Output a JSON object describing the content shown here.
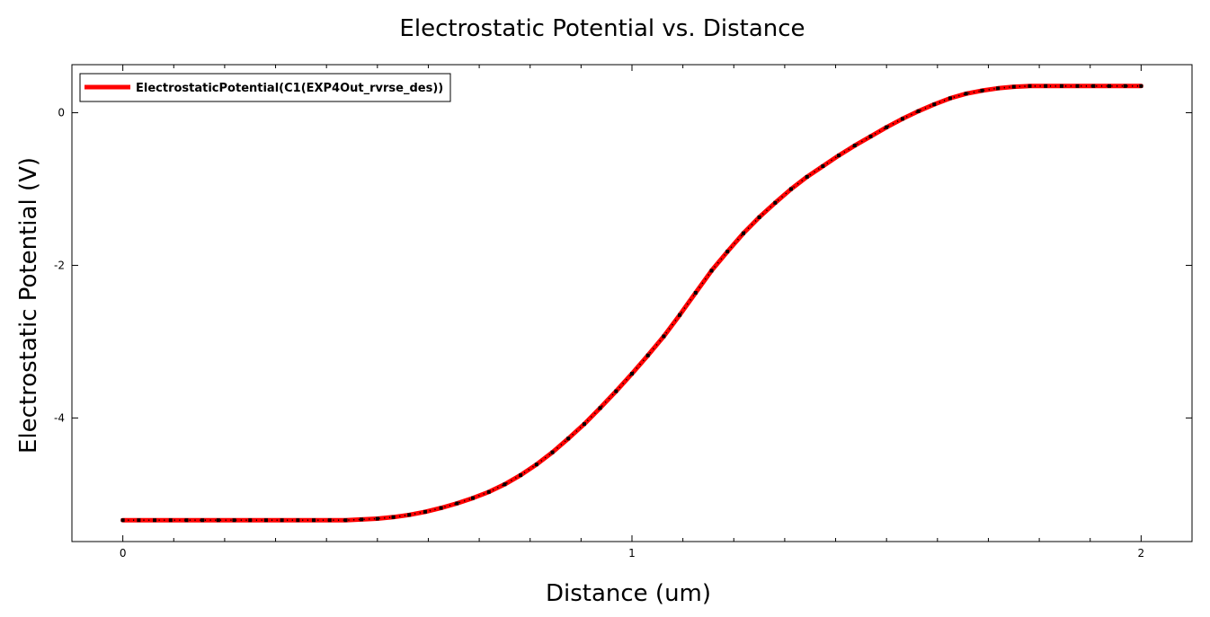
{
  "chart_data": {
    "type": "line",
    "title": "Electrostatic Potential vs. Distance",
    "xlabel": "Distance (um)",
    "ylabel": "Electrostatic Potential (V)",
    "xlim": [
      -0.1,
      2.1
    ],
    "ylim": [
      -5.62,
      0.63
    ],
    "xticks": [
      0,
      1,
      2
    ],
    "yticks": [
      0,
      -2,
      -4
    ],
    "x_minor_step": 0.1,
    "legend_position": "top-left",
    "grid": false,
    "series": [
      {
        "name": "ElectrostaticPotential(C1(EXP4Out_rvrse_des))",
        "color": "#ff0000",
        "marker_color": "#000000",
        "x": [
          0.0,
          0.0313,
          0.0625,
          0.0938,
          0.125,
          0.1563,
          0.1875,
          0.2188,
          0.25,
          0.2813,
          0.3125,
          0.3438,
          0.375,
          0.4063,
          0.4375,
          0.4688,
          0.5,
          0.5313,
          0.5625,
          0.5938,
          0.625,
          0.6563,
          0.6875,
          0.7188,
          0.75,
          0.7813,
          0.8125,
          0.8438,
          0.875,
          0.9063,
          0.9375,
          0.9688,
          1.0,
          1.0313,
          1.0625,
          1.0938,
          1.125,
          1.1563,
          1.1875,
          1.2188,
          1.25,
          1.2813,
          1.3125,
          1.3438,
          1.375,
          1.4063,
          1.4375,
          1.4688,
          1.5,
          1.5313,
          1.5625,
          1.5938,
          1.625,
          1.6563,
          1.6875,
          1.7188,
          1.75,
          1.7813,
          1.8125,
          1.8438,
          1.875,
          1.9063,
          1.9375,
          1.9688,
          2.0
        ],
        "y": [
          -5.34,
          -5.34,
          -5.34,
          -5.34,
          -5.34,
          -5.34,
          -5.34,
          -5.34,
          -5.34,
          -5.34,
          -5.34,
          -5.34,
          -5.34,
          -5.34,
          -5.34,
          -5.33,
          -5.32,
          -5.3,
          -5.27,
          -5.23,
          -5.18,
          -5.12,
          -5.05,
          -4.97,
          -4.87,
          -4.75,
          -4.61,
          -4.45,
          -4.27,
          -4.08,
          -3.87,
          -3.65,
          -3.42,
          -3.18,
          -2.93,
          -2.65,
          -2.36,
          -2.07,
          -1.82,
          -1.58,
          -1.37,
          -1.18,
          -1.0,
          -0.84,
          -0.7,
          -0.56,
          -0.43,
          -0.31,
          -0.19,
          -0.08,
          0.02,
          0.11,
          0.19,
          0.25,
          0.29,
          0.32,
          0.34,
          0.35,
          0.35,
          0.35,
          0.35,
          0.35,
          0.35,
          0.35,
          0.35
        ]
      }
    ]
  }
}
